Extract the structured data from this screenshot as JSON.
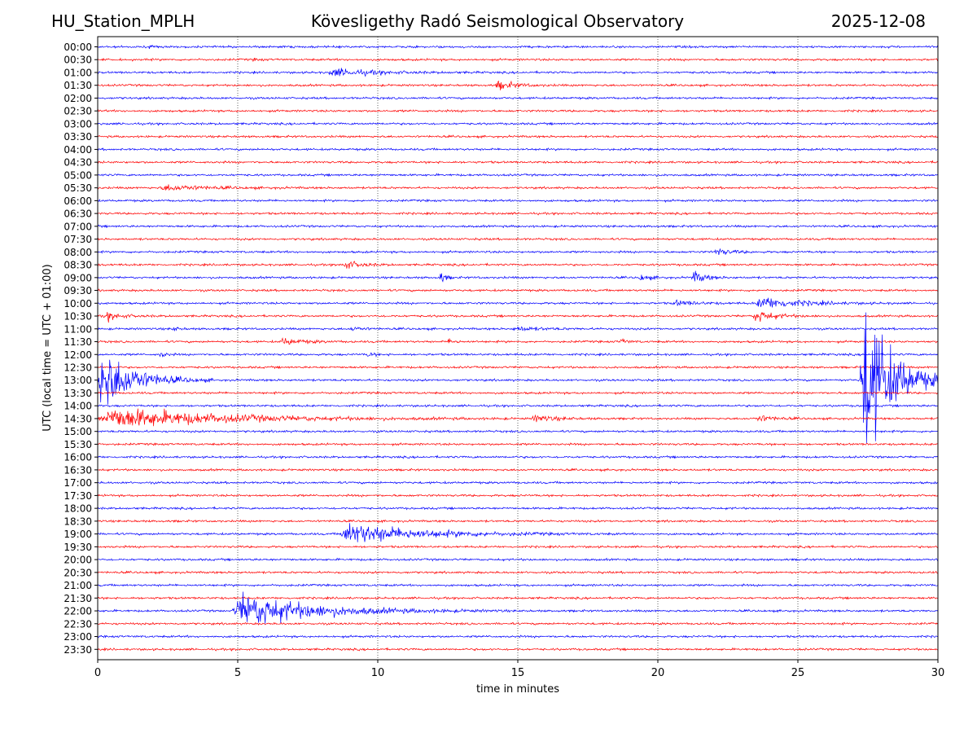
{
  "header": {
    "station": "HU_Station_MPLH",
    "title": "Kövesligethy Radó Seismological Observatory",
    "date": "2025-12-08"
  },
  "chart_data": {
    "type": "line",
    "title": "Kövesligethy Radó Seismological Observatory",
    "xlabel": "time in minutes",
    "ylabel": "UTC (local time = UTC + 01:00)",
    "xlim": [
      0,
      30
    ],
    "xticks": [
      0,
      5,
      10,
      15,
      20,
      25,
      30
    ],
    "grid": "vertical dotted at x ticks",
    "row_labels": [
      "00:00",
      "00:30",
      "01:00",
      "01:30",
      "02:00",
      "02:30",
      "03:00",
      "03:30",
      "04:00",
      "04:30",
      "05:00",
      "05:30",
      "06:00",
      "06:30",
      "07:00",
      "07:30",
      "08:00",
      "08:30",
      "09:00",
      "09:30",
      "10:00",
      "10:30",
      "11:00",
      "11:30",
      "12:00",
      "12:30",
      "13:00",
      "13:30",
      "14:00",
      "14:30",
      "15:00",
      "15:30",
      "16:00",
      "16:30",
      "17:00",
      "17:30",
      "18:00",
      "18:30",
      "19:00",
      "19:30",
      "20:00",
      "20:30",
      "21:00",
      "21:30",
      "22:00",
      "22:30",
      "23:00",
      "23:30"
    ],
    "trace_colors": [
      "#0000ff",
      "#ff0000"
    ],
    "events": [
      {
        "row": "00:00",
        "start_min": 1.8,
        "duration_min": 0.4,
        "amplitude_rows": 0.3
      },
      {
        "row": "00:30",
        "start_min": 5.5,
        "duration_min": 1.0,
        "amplitude_rows": 0.15
      },
      {
        "row": "01:00",
        "start_min": 8.2,
        "duration_min": 4.0,
        "amplitude_rows": 0.9
      },
      {
        "row": "01:30",
        "start_min": 14.2,
        "duration_min": 1.8,
        "amplitude_rows": 1.0
      },
      {
        "row": "05:30",
        "start_min": 2.2,
        "duration_min": 4.0,
        "amplitude_rows": 0.7
      },
      {
        "row": "08:00",
        "start_min": 22.0,
        "duration_min": 1.5,
        "amplitude_rows": 0.8
      },
      {
        "row": "08:30",
        "start_min": 8.7,
        "duration_min": 1.5,
        "amplitude_rows": 1.1
      },
      {
        "row": "09:00",
        "start_min": 12.2,
        "duration_min": 0.5,
        "amplitude_rows": 1.5
      },
      {
        "row": "09:00",
        "start_min": 19.3,
        "duration_min": 1.0,
        "amplitude_rows": 0.8
      },
      {
        "row": "09:00",
        "start_min": 21.2,
        "duration_min": 1.2,
        "amplitude_rows": 1.4
      },
      {
        "row": "10:00",
        "start_min": 20.5,
        "duration_min": 2.0,
        "amplitude_rows": 0.6
      },
      {
        "row": "10:00",
        "start_min": 23.5,
        "duration_min": 3.5,
        "amplitude_rows": 1.6
      },
      {
        "row": "10:30",
        "start_min": 0.2,
        "duration_min": 1.5,
        "amplitude_rows": 1.0
      },
      {
        "row": "10:30",
        "start_min": 23.4,
        "duration_min": 1.8,
        "amplitude_rows": 1.5
      },
      {
        "row": "11:00",
        "start_min": 2.6,
        "duration_min": 0.6,
        "amplitude_rows": 0.6
      },
      {
        "row": "11:00",
        "start_min": 9.0,
        "duration_min": 1.0,
        "amplitude_rows": 0.5
      },
      {
        "row": "11:00",
        "start_min": 14.8,
        "duration_min": 2.5,
        "amplitude_rows": 0.5
      },
      {
        "row": "11:30",
        "start_min": 6.5,
        "duration_min": 2.0,
        "amplitude_rows": 0.8
      },
      {
        "row": "11:30",
        "start_min": 12.5,
        "duration_min": 0.6,
        "amplitude_rows": 0.8
      },
      {
        "row": "11:30",
        "start_min": 18.6,
        "duration_min": 0.6,
        "amplitude_rows": 0.8
      },
      {
        "row": "12:00",
        "start_min": 2.2,
        "duration_min": 0.5,
        "amplitude_rows": 0.8
      },
      {
        "row": "12:00",
        "start_min": 9.6,
        "duration_min": 0.6,
        "amplitude_rows": 0.6
      },
      {
        "row": "14:30",
        "start_min": 0.0,
        "duration_min": 10.5,
        "amplitude_rows": 2.5
      },
      {
        "row": "14:30",
        "start_min": 15.5,
        "duration_min": 2.0,
        "amplitude_rows": 0.8
      },
      {
        "row": "14:30",
        "start_min": 23.5,
        "duration_min": 1.5,
        "amplitude_rows": 0.8
      },
      {
        "row": "19:00",
        "start_min": 8.6,
        "duration_min": 7.0,
        "amplitude_rows": 2.5
      },
      {
        "row": "22:00",
        "start_min": 4.8,
        "duration_min": 7.0,
        "amplitude_rows": 4.0
      },
      {
        "row": "13:00",
        "start_min": 0.0,
        "duration_min": 3.0,
        "amplitude_rows": 8.0
      },
      {
        "row": "13:00",
        "start_min": 27.2,
        "duration_min": 2.8,
        "amplitude_rows": 20.0
      }
    ]
  }
}
